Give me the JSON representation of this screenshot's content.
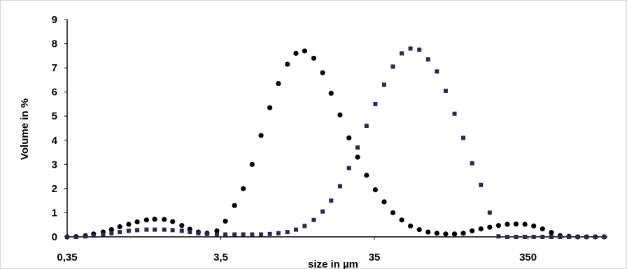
{
  "chart_data": {
    "type": "scatter",
    "title": "",
    "xlabel": "size in µm",
    "ylabel": "Volume in %",
    "xscale": "log",
    "xlim": [
      0.35,
      1150
    ],
    "ylim": [
      0,
      9
    ],
    "grid": false,
    "legend": "none",
    "x_ticks": [
      {
        "value": 0.35,
        "label": "0,35"
      },
      {
        "value": 3.5,
        "label": "3,5"
      },
      {
        "value": 35,
        "label": "35"
      },
      {
        "value": 350,
        "label": "350"
      }
    ],
    "y_ticks": [
      {
        "value": 0,
        "label": "0"
      },
      {
        "value": 1,
        "label": "1"
      },
      {
        "value": 2,
        "label": "2"
      },
      {
        "value": 3,
        "label": "3"
      },
      {
        "value": 4,
        "label": "4"
      },
      {
        "value": 5,
        "label": "5"
      },
      {
        "value": 6,
        "label": "6"
      },
      {
        "value": 7,
        "label": "7"
      },
      {
        "value": 8,
        "label": "8"
      },
      {
        "value": 9,
        "label": "9"
      }
    ],
    "series": [
      {
        "marker": "circle",
        "color": "#000000",
        "x": [
          0.35,
          0.4,
          0.46,
          0.52,
          0.6,
          0.68,
          0.77,
          0.88,
          1.0,
          1.15,
          1.3,
          1.5,
          1.7,
          1.95,
          2.2,
          2.5,
          2.85,
          3.3,
          3.75,
          4.3,
          4.9,
          5.6,
          6.4,
          7.3,
          8.3,
          9.5,
          10.8,
          12.3,
          14.1,
          16.1,
          18.3,
          20.9,
          23.9,
          27.2,
          31.1,
          35.5,
          40.5,
          46.2,
          52.7,
          60.1,
          68.6,
          78.3,
          89.3,
          101.9,
          116.3,
          132.7,
          151.4,
          172.7,
          197.1,
          224.9,
          256.6,
          292.8,
          334.1,
          381.2,
          435.0,
          496.4,
          566.4,
          646.3,
          737.5,
          841.5,
          960.2,
          1095.7
        ],
        "y": [
          0.0,
          0.01,
          0.05,
          0.12,
          0.2,
          0.3,
          0.42,
          0.52,
          0.62,
          0.7,
          0.73,
          0.72,
          0.63,
          0.47,
          0.32,
          0.2,
          0.15,
          0.25,
          0.65,
          1.3,
          2.0,
          3.0,
          4.2,
          5.35,
          6.35,
          7.15,
          7.6,
          7.7,
          7.4,
          6.8,
          5.95,
          5.05,
          4.1,
          3.3,
          2.55,
          1.95,
          1.45,
          1.0,
          0.7,
          0.45,
          0.3,
          0.2,
          0.15,
          0.12,
          0.12,
          0.15,
          0.25,
          0.33,
          0.4,
          0.47,
          0.52,
          0.53,
          0.52,
          0.45,
          0.33,
          0.18,
          0.05,
          0.02,
          0.0,
          0.0,
          0.0,
          0.0
        ]
      },
      {
        "marker": "square",
        "color": "#2b2a4c",
        "x": [
          0.35,
          0.4,
          0.46,
          0.52,
          0.6,
          0.68,
          0.77,
          0.88,
          1.0,
          1.15,
          1.3,
          1.5,
          1.7,
          1.95,
          2.2,
          2.5,
          2.85,
          3.3,
          3.75,
          4.3,
          4.9,
          5.6,
          6.4,
          7.3,
          8.3,
          9.5,
          10.8,
          12.3,
          14.1,
          16.1,
          18.3,
          20.9,
          23.9,
          27.2,
          31.1,
          35.5,
          40.5,
          46.2,
          52.7,
          60.1,
          68.6,
          78.3,
          89.3,
          101.9,
          116.3,
          132.7,
          151.4,
          172.7,
          197.1,
          224.9,
          256.6,
          292.8,
          334.1,
          381.2,
          435.0,
          496.4,
          566.4,
          646.3,
          737.5,
          841.5,
          960.2,
          1095.7
        ],
        "y": [
          0.0,
          0.0,
          0.02,
          0.05,
          0.1,
          0.15,
          0.2,
          0.25,
          0.28,
          0.3,
          0.3,
          0.3,
          0.28,
          0.25,
          0.2,
          0.15,
          0.12,
          0.1,
          0.1,
          0.1,
          0.1,
          0.1,
          0.1,
          0.12,
          0.15,
          0.2,
          0.3,
          0.45,
          0.7,
          1.05,
          1.5,
          2.1,
          2.85,
          3.7,
          4.6,
          5.5,
          6.3,
          7.05,
          7.6,
          7.8,
          7.75,
          7.35,
          6.85,
          6.05,
          5.1,
          4.1,
          3.05,
          2.15,
          1.0,
          0.02,
          0.0,
          0.0,
          0.0,
          0.0,
          0.0,
          0.0,
          0.0,
          0.0,
          0.0,
          0.0,
          0.0,
          0.0
        ]
      }
    ]
  }
}
